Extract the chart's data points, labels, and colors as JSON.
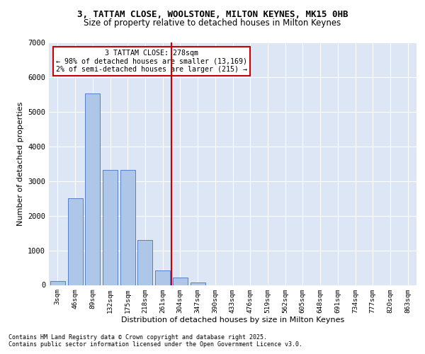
{
  "title_line1": "3, TATTAM CLOSE, WOOLSTONE, MILTON KEYNES, MK15 0HB",
  "title_line2": "Size of property relative to detached houses in Milton Keynes",
  "xlabel": "Distribution of detached houses by size in Milton Keynes",
  "ylabel": "Number of detached properties",
  "bar_labels": [
    "3sqm",
    "46sqm",
    "89sqm",
    "132sqm",
    "175sqm",
    "218sqm",
    "261sqm",
    "304sqm",
    "347sqm",
    "390sqm",
    "433sqm",
    "476sqm",
    "519sqm",
    "562sqm",
    "605sqm",
    "648sqm",
    "691sqm",
    "734sqm",
    "777sqm",
    "820sqm",
    "863sqm"
  ],
  "bar_values": [
    110,
    2510,
    5530,
    3320,
    3320,
    1290,
    420,
    215,
    65,
    0,
    0,
    0,
    0,
    0,
    0,
    0,
    0,
    0,
    0,
    0,
    0
  ],
  "bar_color": "#aec6e8",
  "bar_edge_color": "#4472c4",
  "vline_color": "#cc0000",
  "annotation_text": "3 TATTAM CLOSE: 278sqm\n← 98% of detached houses are smaller (13,169)\n2% of semi-detached houses are larger (215) →",
  "annotation_box_color": "#cc0000",
  "ylim": [
    0,
    7000
  ],
  "yticks": [
    0,
    1000,
    2000,
    3000,
    4000,
    5000,
    6000,
    7000
  ],
  "footer_line1": "Contains HM Land Registry data © Crown copyright and database right 2025.",
  "footer_line2": "Contains public sector information licensed under the Open Government Licence v3.0.",
  "plot_bg_color": "#dce6f5"
}
